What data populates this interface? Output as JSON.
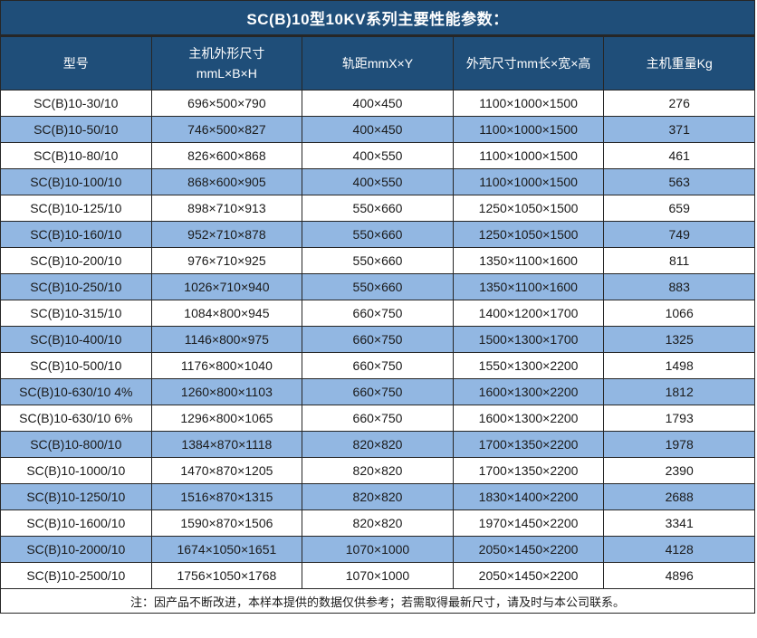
{
  "title": "SC(B)10型10KV系列主要性能参数：",
  "note": "注：因产品不断改进，本样本提供的数据仅供参考；若需取得最新尺寸，请及时与本公司联系。",
  "colors": {
    "header_bg": "#1F4E79",
    "alt_row_bg": "#92B7E2",
    "border": "#262626",
    "header_text": "#FFFFFF",
    "body_text": "#1A1A1A"
  },
  "table": {
    "headers": [
      "型号",
      "主机外形尺寸\nmmL×B×H",
      "轨距mmX×Y",
      "外壳尺寸mm长×宽×高",
      "主机重量Kg"
    ],
    "rows": [
      [
        "SC(B)10-30/10",
        "696×500×790",
        "400×450",
        "1100×1000×1500",
        "276"
      ],
      [
        "SC(B)10-50/10",
        "746×500×827",
        "400×450",
        "1100×1000×1500",
        "371"
      ],
      [
        "SC(B)10-80/10",
        "826×600×868",
        "400×550",
        "1100×1000×1500",
        "461"
      ],
      [
        "SC(B)10-100/10",
        "868×600×905",
        "400×550",
        "1100×1000×1500",
        "563"
      ],
      [
        "SC(B)10-125/10",
        "898×710×913",
        "550×660",
        "1250×1050×1500",
        "659"
      ],
      [
        "SC(B)10-160/10",
        "952×710×878",
        "550×660",
        "1250×1050×1500",
        "749"
      ],
      [
        "SC(B)10-200/10",
        "976×710×925",
        "550×660",
        "1350×1100×1600",
        "811"
      ],
      [
        "SC(B)10-250/10",
        "1026×710×940",
        "550×660",
        "1350×1100×1600",
        "883"
      ],
      [
        "SC(B)10-315/10",
        "1084×800×945",
        "660×750",
        "1400×1200×1700",
        "1066"
      ],
      [
        "SC(B)10-400/10",
        "1146×800×975",
        "660×750",
        "1500×1300×1700",
        "1325"
      ],
      [
        "SC(B)10-500/10",
        "1176×800×1040",
        "660×750",
        "1550×1300×2200",
        "1498"
      ],
      [
        "SC(B)10-630/10 4%",
        "1260×800×1103",
        "660×750",
        "1600×1300×2200",
        "1812"
      ],
      [
        "SC(B)10-630/10 6%",
        "1296×800×1065",
        "660×750",
        "1600×1300×2200",
        "1793"
      ],
      [
        "SC(B)10-800/10",
        "1384×870×1118",
        "820×820",
        "1700×1350×2200",
        "1978"
      ],
      [
        "SC(B)10-1000/10",
        "1470×870×1205",
        "820×820",
        "1700×1350×2200",
        "2390"
      ],
      [
        "SC(B)10-1250/10",
        "1516×870×1315",
        "820×820",
        "1830×1400×2200",
        "2688"
      ],
      [
        "SC(B)10-1600/10",
        "1590×870×1506",
        "820×820",
        "1970×1450×2200",
        "3341"
      ],
      [
        "SC(B)10-2000/10",
        "1674×1050×1651",
        "1070×1000",
        "2050×1450×2200",
        "4128"
      ],
      [
        "SC(B)10-2500/10",
        "1756×1050×1768",
        "1070×1000",
        "2050×1450×2200",
        "4896"
      ]
    ]
  }
}
